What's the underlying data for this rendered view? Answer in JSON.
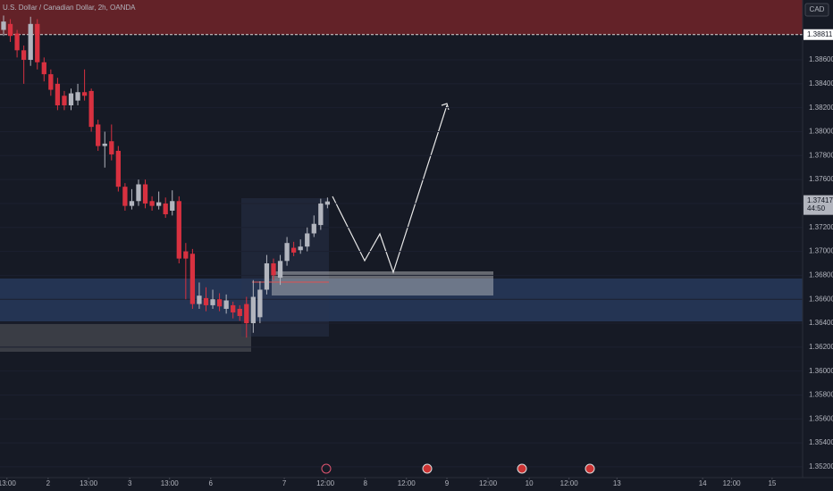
{
  "chart_data": {
    "type": "candlestick",
    "title": "U.S. Dollar / Canadian Dollar, 2h, OANDA",
    "currency": "CAD",
    "up_color": "#b2b5be",
    "down_color": "#d83140",
    "x": [
      0,
      1,
      2,
      3,
      4,
      5,
      6,
      7,
      8,
      9,
      10,
      11,
      12,
      13,
      14,
      15,
      16,
      17,
      18,
      19,
      20,
      21,
      22,
      23,
      24,
      25,
      26,
      27,
      28,
      29,
      30,
      31,
      32,
      33,
      34,
      35,
      36,
      37,
      38,
      39,
      40,
      41,
      42,
      43,
      44,
      45,
      46,
      47,
      48
    ],
    "open": [
      1.3885,
      1.389,
      1.3882,
      1.3868,
      1.386,
      1.389,
      1.3858,
      1.3848,
      1.384,
      1.383,
      1.3822,
      1.3826,
      1.3833,
      1.3834,
      1.3806,
      1.3788,
      1.3792,
      1.3784,
      1.3754,
      1.3738,
      1.3742,
      1.3756,
      1.3742,
      1.3738,
      1.374,
      1.3734,
      1.3742,
      1.37,
      1.3698,
      1.3656,
      1.3661,
      1.3655,
      1.366,
      1.3652,
      1.3655,
      1.3652,
      1.3656,
      1.364,
      1.3645,
      1.3668,
      1.369,
      1.3678,
      1.3692,
      1.3703,
      1.3701,
      1.3704,
      1.3715,
      1.3722,
      1.3739
    ],
    "high": [
      1.3897,
      1.3894,
      1.3885,
      1.3872,
      1.3896,
      1.3894,
      1.3862,
      1.3852,
      1.3845,
      1.3834,
      1.3836,
      1.384,
      1.3852,
      1.3836,
      1.381,
      1.38,
      1.3806,
      1.3788,
      1.3757,
      1.3752,
      1.376,
      1.376,
      1.3746,
      1.375,
      1.3745,
      1.3751,
      1.3746,
      1.3707,
      1.3702,
      1.3674,
      1.367,
      1.3668,
      1.3665,
      1.3664,
      1.3658,
      1.3655,
      1.3662,
      1.3676,
      1.3675,
      1.3697,
      1.3694,
      1.3697,
      1.3712,
      1.3708,
      1.371,
      1.372,
      1.373,
      1.3744,
      1.3745
    ],
    "low": [
      1.388,
      1.3875,
      1.3862,
      1.384,
      1.3855,
      1.3852,
      1.3842,
      1.383,
      1.3818,
      1.3818,
      1.3818,
      1.3822,
      1.3826,
      1.38,
      1.3784,
      1.377,
      1.3776,
      1.375,
      1.3734,
      1.3735,
      1.3738,
      1.3736,
      1.3734,
      1.3735,
      1.3728,
      1.373,
      1.369,
      1.366,
      1.3652,
      1.3652,
      1.365,
      1.3652,
      1.365,
      1.3648,
      1.3644,
      1.3642,
      1.3628,
      1.3632,
      1.364,
      1.3664,
      1.3676,
      1.3672,
      1.3688,
      1.3696,
      1.3698,
      1.37,
      1.3712,
      1.3718,
      1.3736
    ],
    "close": [
      1.3892,
      1.388,
      1.3868,
      1.386,
      1.389,
      1.3858,
      1.3848,
      1.3835,
      1.3822,
      1.3822,
      1.3832,
      1.3833,
      1.383,
      1.3804,
      1.3788,
      1.379,
      1.3781,
      1.3754,
      1.3738,
      1.3742,
      1.3756,
      1.374,
      1.3738,
      1.3741,
      1.3731,
      1.3742,
      1.3694,
      1.3694,
      1.3656,
      1.3663,
      1.3655,
      1.366,
      1.3654,
      1.3659,
      1.3649,
      1.3646,
      1.364,
      1.3662,
      1.3668,
      1.369,
      1.368,
      1.3692,
      1.3707,
      1.3699,
      1.3704,
      1.3715,
      1.3723,
      1.374,
      1.37417
    ],
    "xlim": [
      -0.53,
      118.68
    ],
    "xticks": [
      {
        "value": 0.5,
        "label": "13:00"
      },
      {
        "value": 6.6,
        "label": "2"
      },
      {
        "value": 12.6,
        "label": "13:00"
      },
      {
        "value": 18.7,
        "label": "3"
      },
      {
        "value": 24.6,
        "label": "13:00"
      },
      {
        "value": 30.7,
        "label": "6"
      },
      {
        "value": 41.6,
        "label": "7"
      },
      {
        "value": 47.7,
        "label": "12:00"
      },
      {
        "value": 53.6,
        "label": "8"
      },
      {
        "value": 59.7,
        "label": "12:00"
      },
      {
        "value": 65.7,
        "label": "9"
      },
      {
        "value": 71.8,
        "label": "12:00"
      },
      {
        "value": 77.9,
        "label": "10"
      },
      {
        "value": 83.8,
        "label": "12:00"
      },
      {
        "value": 90.9,
        "label": "13"
      },
      {
        "value": 103.6,
        "label": "14"
      },
      {
        "value": 107.9,
        "label": "12:00"
      },
      {
        "value": 113.9,
        "label": "15"
      }
    ],
    "ylim": [
      1.3511,
      1.391
    ],
    "yticks": [
      {
        "value": 1.352,
        "label": "1.35200"
      },
      {
        "value": 1.354,
        "label": "1.35400"
      },
      {
        "value": 1.356,
        "label": "1.35600"
      },
      {
        "value": 1.358,
        "label": "1.35800"
      },
      {
        "value": 1.36,
        "label": "1.36000"
      },
      {
        "value": 1.362,
        "label": "1.36200"
      },
      {
        "value": 1.364,
        "label": "1.36400"
      },
      {
        "value": 1.366,
        "label": "1.36600"
      },
      {
        "value": 1.368,
        "label": "1.36800"
      },
      {
        "value": 1.37,
        "label": "1.37000"
      },
      {
        "value": 1.372,
        "label": "1.37200"
      },
      {
        "value": 1.374,
        "label": "1.37400"
      },
      {
        "value": 1.376,
        "label": "1.37600"
      },
      {
        "value": 1.378,
        "label": "1.37800"
      },
      {
        "value": 1.38,
        "label": "1.38000"
      },
      {
        "value": 1.382,
        "label": "1.38200"
      },
      {
        "value": 1.384,
        "label": "1.38400"
      },
      {
        "value": 1.386,
        "label": "1.38600"
      }
    ],
    "alert_line": {
      "value": 1.38811,
      "label": "1.38811"
    },
    "last_price": {
      "value": 1.37417,
      "label": "1.37417",
      "countdown": "44:50"
    }
  }
}
